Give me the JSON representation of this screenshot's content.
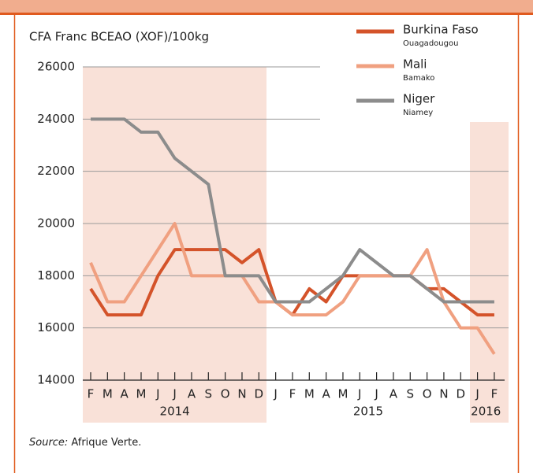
{
  "chart_data": {
    "type": "line",
    "y_axis_label": "CFA Franc BCEAO (XOF)/100kg",
    "categories": [
      "F",
      "M",
      "A",
      "M",
      "J",
      "J",
      "A",
      "S",
      "O",
      "N",
      "D",
      "J",
      "F",
      "M",
      "A",
      "M",
      "J",
      "J",
      "A",
      "S",
      "O",
      "N",
      "D",
      "J",
      "F"
    ],
    "years": [
      "2014",
      "2015",
      "2016"
    ],
    "series": [
      {
        "name": "Burkina Faso",
        "subtitle": "Ouagadougou",
        "color": "#d4532a",
        "values": [
          17500,
          16500,
          16500,
          16500,
          18000,
          19000,
          19000,
          19000,
          19000,
          18500,
          19000,
          17000,
          16500,
          17500,
          17000,
          18000,
          18000,
          18000,
          18000,
          18000,
          17500,
          17500,
          17000,
          16500,
          16500
        ]
      },
      {
        "name": "Mali",
        "subtitle": "Bamako",
        "color": "#f0a080",
        "values": [
          18500,
          17000,
          17000,
          18000,
          19000,
          20000,
          18000,
          18000,
          18000,
          18000,
          17000,
          17000,
          16500,
          16500,
          16500,
          17000,
          18000,
          18000,
          18000,
          18000,
          19000,
          17000,
          16000,
          16000,
          15000
        ]
      },
      {
        "name": "Niger",
        "subtitle": "Niamey",
        "color": "#8c8c8c",
        "values": [
          24000,
          24000,
          24000,
          23500,
          23500,
          22500,
          22000,
          21500,
          18000,
          18000,
          18000,
          17000,
          17000,
          17000,
          17500,
          18000,
          19000,
          18500,
          18000,
          18000,
          17500,
          17000,
          17000,
          17000,
          17000
        ]
      }
    ],
    "ylim": [
      14000,
      26000
    ],
    "yticks": [
      14000,
      16000,
      18000,
      20000,
      22000,
      24000,
      26000
    ],
    "grid": true,
    "source_label": "Source:",
    "source": "Afrique Verte."
  }
}
